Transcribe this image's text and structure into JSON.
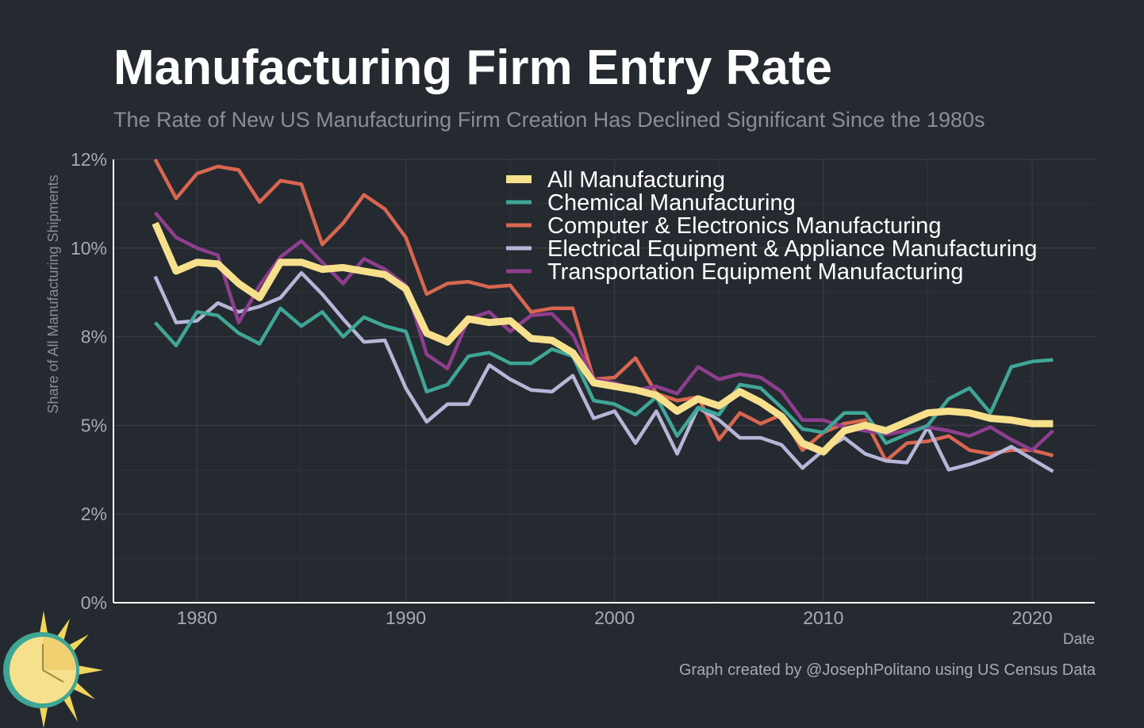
{
  "header": {
    "title": "Manufacturing Firm Entry Rate",
    "subtitle": "The Rate of New US Manufacturing Firm Creation Has Declined Significant Since the 1980s"
  },
  "footer": {
    "caption": "Graph created by @JosephPolitano using US Census Data"
  },
  "colors": {
    "background": "#252a30",
    "grid": "#3b4048",
    "axis": "#ffffff",
    "tick_text": "#a7abb0"
  },
  "chart_data": {
    "type": "line",
    "xlabel": "Date",
    "ylabel": "Share of All Manufacturing Shipments",
    "xlim": [
      1976,
      2023
    ],
    "ylim": [
      0,
      12.5
    ],
    "x_ticks": [
      1980,
      1990,
      2000,
      2010,
      2020
    ],
    "y_ticks": [
      0,
      2.5,
      5,
      7.5,
      10,
      12.5
    ],
    "y_tick_labels": [
      "0%",
      "2%",
      "5%",
      "8%",
      "10%",
      "12%"
    ],
    "grid": true,
    "legend_position": "top-right",
    "x": [
      1978,
      1979,
      1980,
      1981,
      1982,
      1983,
      1984,
      1985,
      1986,
      1987,
      1988,
      1989,
      1990,
      1991,
      1992,
      1993,
      1994,
      1995,
      1996,
      1997,
      1998,
      1999,
      2000,
      2001,
      2002,
      2003,
      2004,
      2005,
      2006,
      2007,
      2008,
      2009,
      2010,
      2011,
      2012,
      2013,
      2014,
      2015,
      2016,
      2017,
      2018,
      2019,
      2020,
      2021
    ],
    "series": [
      {
        "name": "Computer & Electronics Manufacturing",
        "color": "#d96650",
        "values": [
          12.5,
          11.4,
          12.1,
          12.3,
          12.2,
          11.3,
          11.9,
          11.8,
          10.1,
          10.7,
          11.5,
          11.1,
          10.3,
          8.7,
          9.0,
          9.05,
          8.9,
          8.95,
          8.2,
          8.3,
          8.3,
          6.3,
          6.35,
          6.9,
          5.9,
          5.7,
          5.8,
          4.6,
          5.35,
          5.05,
          5.3,
          4.3,
          4.8,
          5.05,
          5.15,
          4.0,
          4.5,
          4.55,
          4.7,
          4.3,
          4.2,
          4.3,
          4.3,
          4.15
        ]
      },
      {
        "name": "Electrical Equipment & Appliance Manufacturing",
        "color": "#b6b6d8",
        "values": [
          9.2,
          7.9,
          7.95,
          8.45,
          8.2,
          8.35,
          8.6,
          9.3,
          8.7,
          8.0,
          7.35,
          7.4,
          6.05,
          5.1,
          5.6,
          5.6,
          6.7,
          6.3,
          6.0,
          5.95,
          6.4,
          5.2,
          5.4,
          4.5,
          5.4,
          4.2,
          5.5,
          5.15,
          4.65,
          4.65,
          4.45,
          3.8,
          4.3,
          4.65,
          4.2,
          4.0,
          3.95,
          4.95,
          3.75,
          3.9,
          4.1,
          4.4,
          4.05,
          3.7
        ]
      },
      {
        "name": "Transportation Equipment Manufacturing",
        "color": "#8e3e8e",
        "values": [
          11.0,
          10.3,
          10.0,
          9.8,
          7.9,
          8.95,
          9.75,
          10.2,
          9.6,
          9.0,
          9.7,
          9.4,
          8.95,
          7.0,
          6.6,
          8.0,
          8.2,
          7.65,
          8.1,
          8.15,
          7.55,
          6.3,
          6.2,
          6.0,
          6.1,
          5.9,
          6.65,
          6.3,
          6.45,
          6.35,
          5.95,
          5.15,
          5.15,
          4.95,
          4.85,
          4.75,
          4.85,
          4.95,
          4.85,
          4.7,
          4.95,
          4.6,
          4.3,
          4.85
        ]
      },
      {
        "name": "Chemical Manufacturing",
        "color": "#3fa696",
        "values": [
          7.9,
          7.25,
          8.2,
          8.1,
          7.6,
          7.3,
          8.3,
          7.8,
          8.2,
          7.5,
          8.05,
          7.8,
          7.65,
          5.95,
          6.15,
          6.95,
          7.05,
          6.75,
          6.75,
          7.15,
          6.95,
          5.7,
          5.6,
          5.3,
          5.8,
          4.7,
          5.5,
          5.3,
          6.15,
          6.05,
          5.5,
          4.9,
          4.8,
          5.35,
          5.35,
          4.5,
          4.75,
          5.0,
          5.75,
          6.05,
          5.35,
          6.65,
          6.8,
          6.85
        ]
      },
      {
        "name": "All Manufacturing",
        "color": "#f7e08c",
        "values": [
          10.7,
          9.35,
          9.6,
          9.55,
          9.0,
          8.6,
          9.6,
          9.6,
          9.4,
          9.45,
          9.35,
          9.25,
          8.85,
          7.6,
          7.35,
          8.0,
          7.9,
          7.95,
          7.45,
          7.4,
          7.05,
          6.2,
          6.1,
          6.0,
          5.85,
          5.4,
          5.75,
          5.55,
          5.95,
          5.65,
          5.25,
          4.5,
          4.25,
          4.85,
          5.0,
          4.85,
          5.1,
          5.35,
          5.4,
          5.35,
          5.2,
          5.15,
          5.05,
          5.05
        ]
      }
    ],
    "legend_order": [
      "All Manufacturing",
      "Chemical Manufacturing",
      "Computer & Electronics Manufacturing",
      "Electrical Equipment & Appliance Manufacturing",
      "Transportation Equipment Manufacturing"
    ]
  }
}
